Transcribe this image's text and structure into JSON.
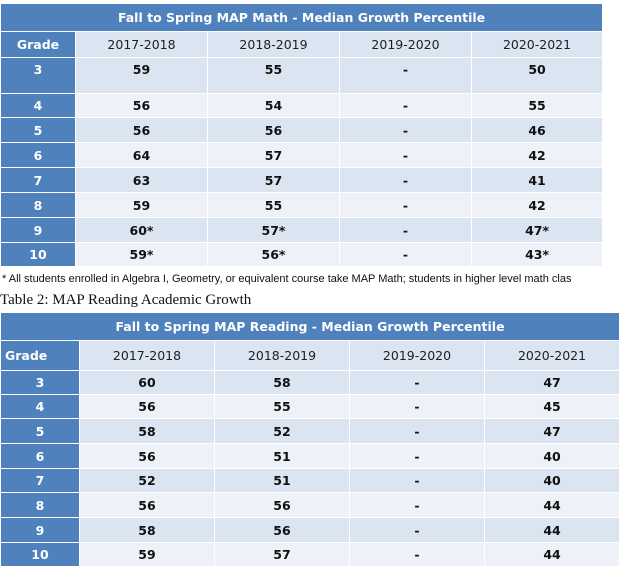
{
  "table1": {
    "title": "Fall to Spring MAP Math - Median Growth Percentile",
    "grade_header": "Grade",
    "years": [
      "2017-2018",
      "2018-2019",
      "2019-2020",
      "2020-2021"
    ],
    "rows": [
      {
        "grade": "3",
        "values": [
          "59",
          "55",
          "-",
          "50"
        ]
      },
      {
        "grade": "4",
        "values": [
          "56",
          "54",
          "-",
          "55"
        ]
      },
      {
        "grade": "5",
        "values": [
          "56",
          "56",
          "-",
          "46"
        ]
      },
      {
        "grade": "6",
        "values": [
          "64",
          "57",
          "-",
          "42"
        ]
      },
      {
        "grade": "7",
        "values": [
          "63",
          "57",
          "-",
          "41"
        ]
      },
      {
        "grade": "8",
        "values": [
          "59",
          "55",
          "-",
          "42"
        ]
      },
      {
        "grade": "9",
        "values": [
          "60*",
          "57*",
          "-",
          "47*"
        ]
      },
      {
        "grade": "10",
        "values": [
          "59*",
          "56*",
          "-",
          "43*"
        ]
      }
    ]
  },
  "footnote": "* All students enrolled in Algebra I, Geometry, or equivalent course take MAP Math; students in higher level math clas",
  "caption": "Table 2: MAP Reading Academic Growth",
  "table2": {
    "title": "Fall to Spring MAP Reading - Median Growth Percentile",
    "grade_header": "Grade",
    "years": [
      "2017-2018",
      "2018-2019",
      "2019-2020",
      "2020-2021"
    ],
    "rows": [
      {
        "grade": "3",
        "values": [
          "60",
          "58",
          "-",
          "47"
        ]
      },
      {
        "grade": "4",
        "values": [
          "56",
          "55",
          "-",
          "45"
        ]
      },
      {
        "grade": "5",
        "values": [
          "58",
          "52",
          "-",
          "47"
        ]
      },
      {
        "grade": "6",
        "values": [
          "56",
          "51",
          "-",
          "40"
        ]
      },
      {
        "grade": "7",
        "values": [
          "52",
          "51",
          "-",
          "40"
        ]
      },
      {
        "grade": "8",
        "values": [
          "56",
          "56",
          "-",
          "44"
        ]
      },
      {
        "grade": "9",
        "values": [
          "58",
          "56",
          "-",
          "44"
        ]
      },
      {
        "grade": "10",
        "values": [
          "59",
          "57",
          "-",
          "44"
        ]
      }
    ]
  }
}
